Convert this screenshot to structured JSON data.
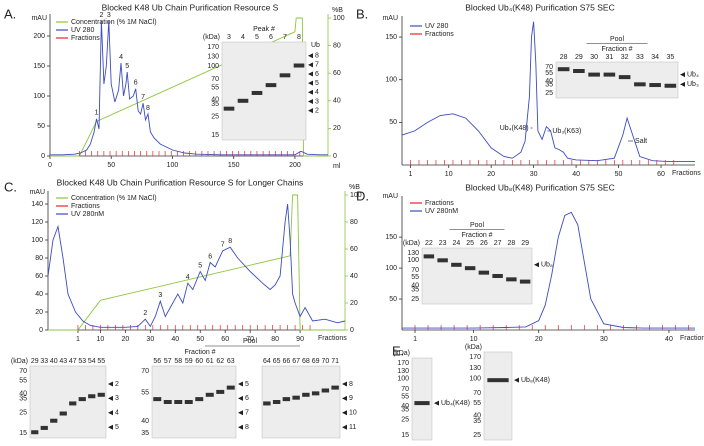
{
  "chart_data": [
    {
      "type": "line",
      "panel": "A.",
      "title": "Blocked K48 Ub Chain Purification Resource S",
      "x_label": "ml",
      "xlim": [
        0,
        227
      ],
      "xticks": [
        0,
        50,
        100,
        150,
        200
      ],
      "y_label": "mAU",
      "ylim": [
        0,
        230
      ],
      "yticks": [
        0,
        50,
        100,
        150,
        200
      ],
      "y2_label": "%B",
      "y2lim": [
        0,
        100
      ],
      "y2ticks": [
        0,
        20,
        40,
        60,
        80,
        100
      ],
      "series": [
        {
          "name": "Concentration (% 1M NaCl)",
          "color": "#8cc63e",
          "axis": "y2",
          "x": [
            0,
            24,
            38,
            200,
            201,
            206,
            207,
            227
          ],
          "values": [
            0,
            0,
            25,
            90,
            100,
            100,
            0,
            0
          ]
        },
        {
          "name": "UV 280",
          "color": "#3b4cc0",
          "x": [
            0,
            10,
            20,
            25,
            30,
            33,
            36,
            38,
            40,
            42,
            44,
            46,
            48,
            50,
            53,
            56,
            58,
            60,
            62,
            63,
            65,
            68,
            70,
            72,
            74,
            76,
            78,
            80,
            82,
            85,
            90,
            95,
            100,
            110,
            120,
            140,
            160,
            180,
            200,
            205,
            210,
            220,
            227
          ],
          "values": [
            2,
            2,
            3,
            5,
            10,
            20,
            40,
            62,
            45,
            225,
            120,
            150,
            225,
            120,
            90,
            110,
            155,
            100,
            120,
            140,
            95,
            100,
            112,
            75,
            70,
            88,
            60,
            70,
            40,
            30,
            20,
            15,
            10,
            5,
            3,
            2,
            2,
            2,
            2,
            8,
            3,
            2,
            2
          ]
        },
        {
          "name": "Fractions",
          "color": "#e5262b",
          "x": [
            24,
            29,
            34,
            39,
            44,
            49,
            54,
            59,
            64,
            69,
            74,
            79,
            84,
            89,
            94,
            99,
            104,
            109,
            114,
            119,
            124,
            129,
            134,
            139,
            144,
            149,
            154,
            159,
            164,
            169,
            174,
            179,
            184,
            189,
            194,
            199,
            204
          ]
        }
      ],
      "annotations": [
        {
          "text": "1",
          "x": 38
        },
        {
          "text": "2",
          "x": 42
        },
        {
          "text": "3",
          "x": 48
        },
        {
          "text": "4",
          "x": 58
        },
        {
          "text": "5",
          "x": 63
        },
        {
          "text": "6",
          "x": 70
        },
        {
          "text": "7",
          "x": 76
        },
        {
          "text": "8",
          "x": 80
        }
      ],
      "inset_gel": {
        "header": "Peak #",
        "kda_label": "(kDa)",
        "lanes": [
          3,
          4,
          5,
          6,
          7,
          8
        ],
        "mw": [
          170,
          130,
          100,
          70,
          55,
          40,
          35,
          25,
          15
        ],
        "label_header": "Ub",
        "labels": [
          "8",
          "7",
          "6",
          "5",
          "4",
          "3",
          "2"
        ]
      }
    },
    {
      "type": "line",
      "panel": "B.",
      "title": "Blocked Ub₄(K48) Purification S75 SEC",
      "x_label": "Fractions",
      "xlim": [
        -1,
        68
      ],
      "xticks": [
        1,
        10,
        20,
        30,
        40,
        50,
        60
      ],
      "y_label": "mAU",
      "ylim": [
        0,
        170
      ],
      "yticks": [
        50,
        100,
        150
      ],
      "series": [
        {
          "name": "UV 280",
          "color": "#3b4cc0",
          "x": [
            -1,
            2,
            5,
            8,
            11,
            14,
            17,
            20,
            23,
            25,
            27,
            28,
            29,
            29.5,
            30,
            30.5,
            31,
            32,
            33,
            34,
            35,
            36,
            37,
            38,
            40,
            45,
            49,
            51,
            52,
            53,
            55,
            58,
            62,
            68
          ],
          "values": [
            35,
            40,
            50,
            58,
            60,
            55,
            40,
            20,
            10,
            8,
            15,
            28,
            80,
            150,
            168,
            120,
            40,
            30,
            45,
            40,
            20,
            18,
            15,
            8,
            6,
            5,
            8,
            35,
            55,
            40,
            10,
            5,
            4,
            4
          ]
        },
        {
          "name": "Fractions",
          "color": "#e5262b",
          "x": [
            1,
            3,
            5,
            7,
            9,
            11,
            13,
            15,
            17,
            19,
            21,
            23,
            25,
            27,
            29,
            31,
            33,
            35,
            37,
            39,
            41,
            43,
            45,
            47,
            49,
            51,
            53,
            55,
            57,
            59,
            61,
            63
          ]
        }
      ],
      "annotations": [
        {
          "text": "Ub₄(K48)",
          "x": 30
        },
        {
          "text": "Ub₃(K63)",
          "x": 33
        },
        {
          "text": "Salt",
          "x": 52
        }
      ],
      "inset_gel": {
        "pool": "Pool",
        "header": "Fraction #",
        "lanes": [
          28,
          29,
          30,
          31,
          32,
          33,
          34,
          35
        ],
        "mw": [
          70,
          55,
          40,
          35,
          25
        ],
        "labels": [
          "Ub₄",
          "Ub₃"
        ]
      }
    },
    {
      "type": "line",
      "panel": "C.",
      "title": "Blocked K48 Ub Chain Purification Resource S for Longer Chains",
      "x_label": "Fractions",
      "xlim": [
        -11,
        108
      ],
      "xticks": [
        1,
        10,
        20,
        30,
        40,
        50,
        60,
        70,
        80,
        90
      ],
      "y_label": "mAU",
      "ylim": [
        0,
        150
      ],
      "yticks": [
        0,
        20,
        40,
        60,
        80,
        100,
        120,
        140
      ],
      "y2_label": "%B",
      "y2lim": [
        0,
        100
      ],
      "y2ticks": [
        0,
        20,
        40,
        60,
        80,
        100
      ],
      "series": [
        {
          "name": "Concentration (% 1M NaCl)",
          "color": "#8cc63e",
          "axis": "y2",
          "x": [
            -11,
            1,
            10,
            86,
            87,
            89,
            90,
            108
          ],
          "values": [
            0,
            0,
            22,
            55,
            100,
            100,
            0,
            0
          ]
        },
        {
          "name": "Fractions",
          "color": "#e5262b",
          "x": [
            1,
            4,
            7,
            10,
            13,
            16,
            19,
            22,
            25,
            28,
            31,
            34,
            37,
            40,
            43,
            46,
            49,
            52,
            55,
            58,
            61,
            64,
            67,
            70,
            73,
            76,
            79,
            82,
            85,
            88,
            91,
            94
          ]
        },
        {
          "name": "UV 280nM",
          "color": "#3b4cc0",
          "x": [
            -11,
            -9,
            -7,
            -5,
            -3,
            0,
            3,
            6,
            10,
            15,
            20,
            25,
            28,
            30,
            32,
            34,
            36,
            38,
            41,
            43,
            45,
            47,
            50,
            52,
            54,
            56,
            59,
            62,
            65,
            70,
            75,
            78,
            80,
            82,
            84,
            85,
            86,
            87,
            88,
            90,
            92,
            95,
            100,
            105,
            108
          ],
          "values": [
            60,
            100,
            115,
            80,
            40,
            20,
            10,
            5,
            3,
            3,
            3,
            4,
            12,
            4,
            15,
            32,
            15,
            25,
            40,
            30,
            52,
            45,
            65,
            55,
            75,
            70,
            88,
            92,
            80,
            65,
            52,
            45,
            50,
            60,
            120,
            140,
            100,
            40,
            30,
            15,
            25,
            10,
            12,
            8,
            10
          ]
        }
      ],
      "annotations": [
        {
          "text": "2",
          "x": 28
        },
        {
          "text": "3",
          "x": 34
        },
        {
          "text": "4",
          "x": 45
        },
        {
          "text": "5",
          "x": 50
        },
        {
          "text": "6",
          "x": 54
        },
        {
          "text": "7",
          "x": 59
        },
        {
          "text": "8",
          "x": 62
        }
      ]
    },
    {
      "type": "line",
      "panel": "D.",
      "title": "Blocked Ub₈(K48) Purification S75 SEC",
      "x_label": "Fractions",
      "xlim": [
        -1,
        44
      ],
      "xticks": [
        1,
        10,
        20,
        30,
        40
      ],
      "y_label": "mAU",
      "ylim": [
        0,
        210
      ],
      "yticks": [
        50,
        100,
        150
      ],
      "series": [
        {
          "name": "Fractions",
          "color": "#e5262b",
          "x": [
            1,
            3,
            5,
            7,
            9,
            11,
            13,
            15,
            17,
            19,
            21,
            23,
            25,
            27,
            29,
            31,
            33,
            35,
            37,
            39,
            41,
            43
          ]
        },
        {
          "name": "UV 280nM",
          "color": "#3b4cc0",
          "x": [
            -1,
            2,
            5,
            10,
            15,
            18,
            20,
            21,
            22,
            23,
            24,
            25,
            26,
            27,
            28,
            30,
            33,
            36,
            40,
            44
          ],
          "values": [
            3,
            3,
            3,
            3,
            4,
            5,
            15,
            40,
            90,
            150,
            185,
            190,
            170,
            110,
            50,
            10,
            4,
            3,
            3,
            3
          ]
        }
      ],
      "inset_gel": {
        "pool": "Pool",
        "header": "Fraction #",
        "kda_label": "(kDa)",
        "lanes": [
          22,
          23,
          24,
          25,
          26,
          27,
          28,
          29
        ],
        "mw": [
          130,
          100,
          70,
          55,
          40,
          35,
          25
        ],
        "labels": [
          "Ub₈"
        ]
      }
    }
  ],
  "gels_c": {
    "pool": "Pool",
    "header": "Fraction #",
    "gels": [
      {
        "kda_label": "(kDa)",
        "lanes": [
          29,
          33,
          40,
          43,
          47,
          53,
          54,
          55
        ],
        "mw": [
          70,
          55,
          40,
          35,
          25,
          15
        ],
        "labels": [
          "2",
          "3",
          "4",
          "5"
        ]
      },
      {
        "lanes": [
          56,
          57,
          58,
          59,
          60,
          61,
          62,
          63
        ],
        "mw": [
          70,
          55,
          40,
          35
        ],
        "labels": [
          "5",
          "6",
          "7",
          "8"
        ]
      },
      {
        "lanes": [
          64,
          65,
          66,
          67,
          68,
          69,
          70,
          71
        ],
        "labels": [
          "8",
          "9",
          "10",
          "11"
        ]
      }
    ]
  },
  "panel_e": {
    "panel": "E.",
    "gels": [
      {
        "kda_label": "(kDa)",
        "mw": [
          170,
          130,
          100,
          70,
          55,
          40,
          35,
          25,
          15
        ],
        "labels": [
          "Ub₄(K48)"
        ]
      },
      {
        "kda_label": "(kDa)",
        "mw": [
          170,
          130,
          100,
          70,
          55,
          40,
          35,
          25
        ],
        "labels": [
          "Ub₈(K48)"
        ]
      }
    ]
  }
}
